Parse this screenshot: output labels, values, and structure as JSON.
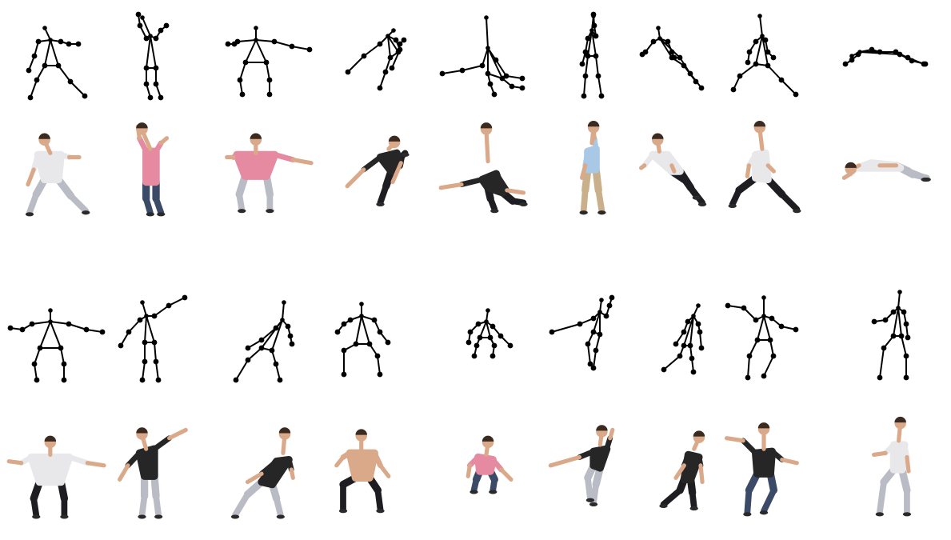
{
  "figure": {
    "skeleton_color": "#000000",
    "background": "#ffffff",
    "person_palette": {
      "skin": "#d9a98a",
      "hair": "#3a2a20",
      "white_shirt": "#e8e8ea",
      "pink_shirt": "#e68aa2",
      "light_blue_shirt": "#a8c8e6",
      "dark_shirt": "#262626",
      "dark_pants": "#1e1e22",
      "light_pants": "#b9bcc4",
      "khaki_pants": "#c9b08a",
      "jeans": "#3b4a66"
    },
    "rows": [
      {
        "kind": "skeleton",
        "count": 9
      },
      {
        "kind": "person",
        "count": 9
      },
      {
        "kind": "skeleton",
        "count": 9
      },
      {
        "kind": "person",
        "count": 9
      }
    ]
  }
}
